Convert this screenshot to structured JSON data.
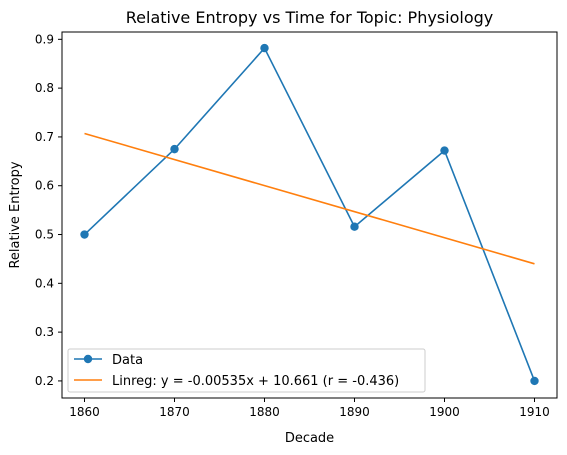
{
  "chart_data": {
    "type": "line",
    "title": "Relative Entropy vs Time for Topic: Physiology",
    "xlabel": "Decade",
    "ylabel": "Relative Entropy",
    "xlim": [
      1857.5,
      1912.5
    ],
    "ylim": [
      0.165,
      0.915
    ],
    "x_ticks": [
      1860,
      1870,
      1880,
      1890,
      1900,
      1910
    ],
    "y_ticks": [
      0.2,
      0.3,
      0.4,
      0.5,
      0.6,
      0.7,
      0.8,
      0.9
    ],
    "x_tick_labels": [
      "1860",
      "1870",
      "1880",
      "1890",
      "1900",
      "1910"
    ],
    "y_tick_labels": [
      "0.2",
      "0.3",
      "0.4",
      "0.5",
      "0.6",
      "0.7",
      "0.8",
      "0.9"
    ],
    "grid": false,
    "legend_position": "lower-left",
    "series": [
      {
        "name": "Data",
        "kind": "line-markers",
        "color": "#1f77b4",
        "x": [
          1860,
          1870,
          1880,
          1890,
          1900,
          1910
        ],
        "y": [
          0.5,
          0.675,
          0.882,
          0.516,
          0.672,
          0.2
        ]
      },
      {
        "name": "Linreg: y = -0.00535x + 10.661 (r = -0.436)",
        "kind": "line",
        "color": "#ff7f0e",
        "x": [
          1860,
          1910
        ],
        "y": [
          0.707,
          0.44
        ]
      }
    ]
  }
}
